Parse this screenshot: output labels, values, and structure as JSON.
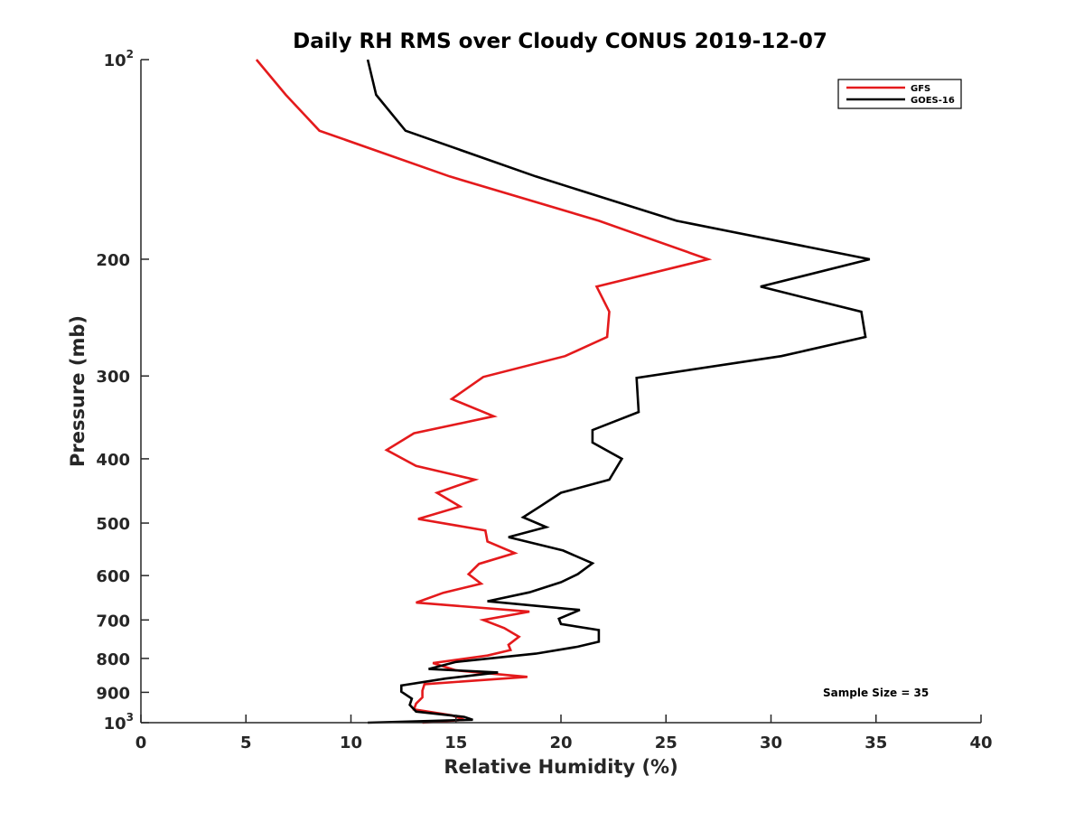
{
  "chart_data": {
    "type": "line",
    "title": "Daily RH RMS over Cloudy CONUS 2019-12-07",
    "xlabel": "Relative Humidity (%)",
    "ylabel": "Pressure (mb)",
    "xlim": [
      0,
      40
    ],
    "ylim": [
      1000,
      100
    ],
    "y_scale": "log",
    "y_reversed": true,
    "x_ticks": [
      "0",
      "5",
      "10",
      "15",
      "20",
      "25",
      "30",
      "35",
      "40"
    ],
    "y_ticks": [
      {
        "value": 100,
        "base": "10",
        "sup": "2"
      },
      {
        "value": 200,
        "base": "200",
        "sup": ""
      },
      {
        "value": 300,
        "base": "300",
        "sup": ""
      },
      {
        "value": 400,
        "base": "400",
        "sup": ""
      },
      {
        "value": 500,
        "base": "500",
        "sup": ""
      },
      {
        "value": 600,
        "base": "600",
        "sup": ""
      },
      {
        "value": 700,
        "base": "700",
        "sup": ""
      },
      {
        "value": 800,
        "base": "800",
        "sup": ""
      },
      {
        "value": 900,
        "base": "900",
        "sup": ""
      },
      {
        "value": 1000,
        "base": "10",
        "sup": "3"
      }
    ],
    "grid": false,
    "legend_position": "top-right",
    "annotation": "Sample Size = 35",
    "series": [
      {
        "name": "GFS",
        "color": "#e41a1c",
        "points": [
          [
            5.5,
            100
          ],
          [
            6.9,
            113
          ],
          [
            8.5,
            128
          ],
          [
            14.7,
            150
          ],
          [
            21.8,
            175
          ],
          [
            27.0,
            200
          ],
          [
            21.7,
            220
          ],
          [
            22.3,
            240
          ],
          [
            22.2,
            262
          ],
          [
            20.2,
            280
          ],
          [
            16.3,
            301
          ],
          [
            14.8,
            325
          ],
          [
            16.8,
            345
          ],
          [
            13.0,
            366
          ],
          [
            11.7,
            388
          ],
          [
            13.1,
            410
          ],
          [
            15.9,
            430
          ],
          [
            14.1,
            450
          ],
          [
            15.2,
            472
          ],
          [
            13.2,
            493
          ],
          [
            16.4,
            513
          ],
          [
            16.5,
            533
          ],
          [
            17.8,
            555
          ],
          [
            16.1,
            576
          ],
          [
            15.6,
            597
          ],
          [
            16.2,
            617
          ],
          [
            14.4,
            637
          ],
          [
            13.1,
            659
          ],
          [
            18.5,
            680
          ],
          [
            16.3,
            700
          ],
          [
            17.3,
            720
          ],
          [
            18.0,
            742
          ],
          [
            17.5,
            763
          ],
          [
            17.6,
            777
          ],
          [
            16.5,
            792
          ],
          [
            13.9,
            813
          ],
          [
            15.0,
            834
          ],
          [
            18.4,
            853
          ],
          [
            13.5,
            875
          ],
          [
            13.4,
            895
          ],
          [
            13.4,
            916
          ],
          [
            13.1,
            936
          ],
          [
            13.0,
            955
          ],
          [
            14.8,
            975
          ],
          [
            15.4,
            990
          ],
          [
            13.4,
            1000
          ]
        ]
      },
      {
        "name": "GOES-16",
        "color": "#000000",
        "points": [
          [
            10.8,
            100
          ],
          [
            11.2,
            113
          ],
          [
            12.6,
            128
          ],
          [
            18.8,
            150
          ],
          [
            25.5,
            175
          ],
          [
            34.7,
            200
          ],
          [
            29.5,
            220
          ],
          [
            34.3,
            240
          ],
          [
            34.5,
            262
          ],
          [
            30.5,
            280
          ],
          [
            23.6,
            302
          ],
          [
            23.7,
            340
          ],
          [
            21.5,
            362
          ],
          [
            21.5,
            378
          ],
          [
            22.9,
            400
          ],
          [
            22.3,
            430
          ],
          [
            20.0,
            450
          ],
          [
            19.0,
            472
          ],
          [
            18.2,
            490
          ],
          [
            19.3,
            507
          ],
          [
            17.5,
            525
          ],
          [
            20.1,
            550
          ],
          [
            21.5,
            575
          ],
          [
            20.8,
            597
          ],
          [
            20.0,
            614
          ],
          [
            18.5,
            636
          ],
          [
            16.5,
            656
          ],
          [
            20.9,
            676
          ],
          [
            19.9,
            697
          ],
          [
            20.0,
            710
          ],
          [
            21.8,
            725
          ],
          [
            21.8,
            755
          ],
          [
            20.8,
            768
          ],
          [
            18.8,
            787
          ],
          [
            15.0,
            810
          ],
          [
            13.7,
            830
          ],
          [
            17.0,
            840
          ],
          [
            14.5,
            858
          ],
          [
            12.4,
            879
          ],
          [
            12.4,
            898
          ],
          [
            12.9,
            920
          ],
          [
            12.8,
            940
          ],
          [
            13.1,
            962
          ],
          [
            15.4,
            980
          ],
          [
            15.8,
            990
          ],
          [
            10.8,
            1000
          ]
        ]
      }
    ]
  }
}
